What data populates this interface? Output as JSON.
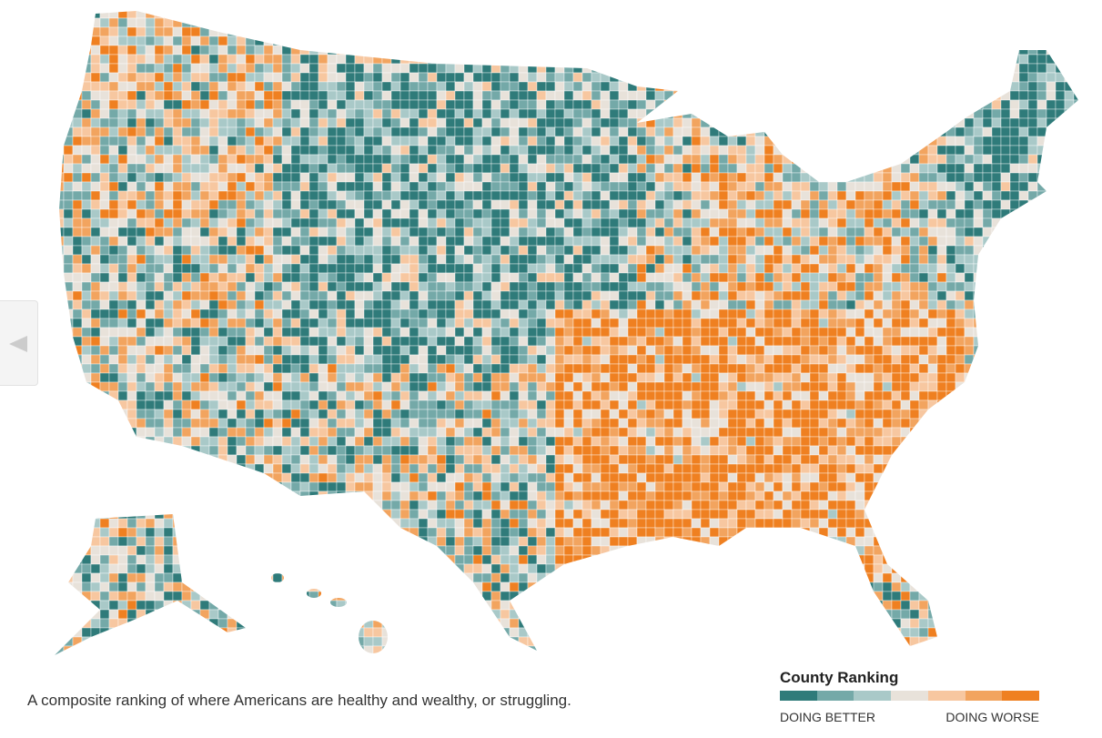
{
  "caption": "A composite ranking of where Americans are healthy and wealthy, or struggling.",
  "legend": {
    "title": "County Ranking",
    "colors": [
      "#2f7b7a",
      "#74a9a8",
      "#a9c9c8",
      "#e8e2da",
      "#f7c7a0",
      "#f2a45f",
      "#ef8021"
    ],
    "low_label": "DOING BETTER",
    "high_label": "DOING WORSE"
  }
}
